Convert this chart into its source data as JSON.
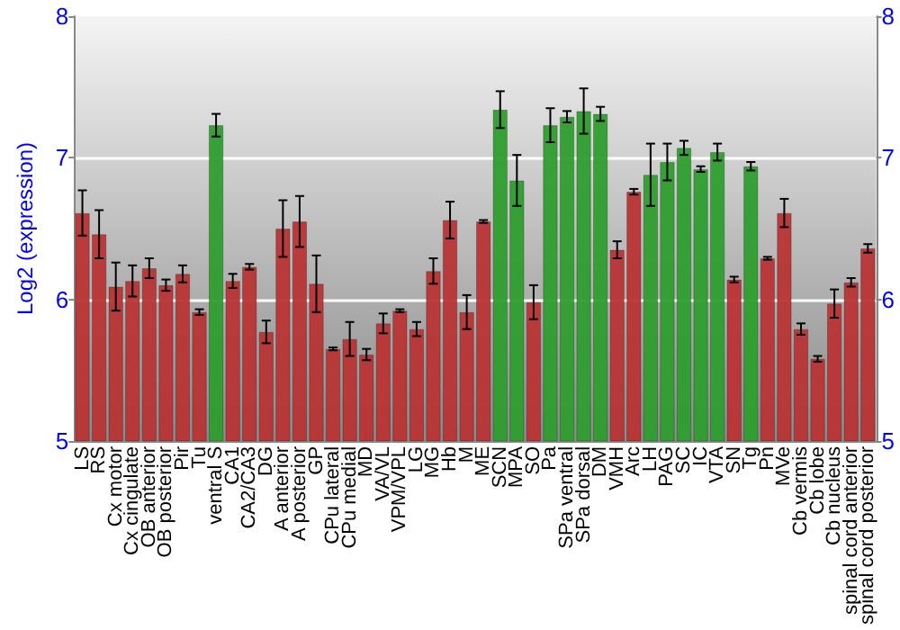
{
  "chart_data": {
    "type": "bar",
    "ylabel": "Log2 (expression)",
    "categories": [
      "LS",
      "RS",
      "Cx motor",
      "Cx cingulate",
      "OB anterior",
      "OB posterior",
      "Pir",
      "Tu",
      "ventral S",
      "CA1",
      "CA2/CA3",
      "DG",
      "A anterior",
      "A posterior",
      "GP",
      "CPu lateral",
      "CPu medial",
      "MD",
      "VA/VL",
      "VPM/VPL",
      "LG",
      "MG",
      "Hb",
      "M",
      "ME",
      "SCN",
      "MPA",
      "SO",
      "Pa",
      "SPa ventral",
      "SPa dorsal",
      "DM",
      "VMH",
      "Arc",
      "LH",
      "PAG",
      "SC",
      "IC",
      "VTA",
      "SN",
      "Tg",
      "Pn",
      "MVe",
      "Cb vermis",
      "Cb lobe",
      "Cb nucleus",
      "spinal cord anterior",
      "spinal cord posterior"
    ],
    "values": [
      6.61,
      6.46,
      6.09,
      6.13,
      6.22,
      6.1,
      6.18,
      5.91,
      7.23,
      6.13,
      6.23,
      5.77,
      6.5,
      6.55,
      6.11,
      5.65,
      5.72,
      5.61,
      5.83,
      5.92,
      5.79,
      6.2,
      6.56,
      5.91,
      6.55,
      7.34,
      6.84,
      5.98,
      7.23,
      7.29,
      7.33,
      7.31,
      6.35,
      6.76,
      6.88,
      6.97,
      7.07,
      6.92,
      7.04,
      6.14,
      6.94,
      6.29,
      6.61,
      5.79,
      5.58,
      5.97,
      6.12,
      6.36
    ],
    "errors": [
      0.16,
      0.17,
      0.17,
      0.11,
      0.07,
      0.04,
      0.06,
      0.02,
      0.08,
      0.05,
      0.02,
      0.08,
      0.2,
      0.18,
      0.2,
      0.01,
      0.12,
      0.04,
      0.07,
      0.01,
      0.05,
      0.09,
      0.13,
      0.12,
      0.01,
      0.13,
      0.18,
      0.12,
      0.12,
      0.04,
      0.16,
      0.05,
      0.06,
      0.02,
      0.22,
      0.13,
      0.05,
      0.02,
      0.06,
      0.02,
      0.03,
      0.01,
      0.1,
      0.04,
      0.02,
      0.1,
      0.03,
      0.03
    ],
    "colors": [
      "#b83434",
      "#b83434",
      "#b83434",
      "#b83434",
      "#b83434",
      "#b83434",
      "#b83434",
      "#b83434",
      "#2e9e2e",
      "#b83434",
      "#b83434",
      "#b83434",
      "#b83434",
      "#b83434",
      "#b83434",
      "#b83434",
      "#b83434",
      "#b83434",
      "#b83434",
      "#b83434",
      "#b83434",
      "#b83434",
      "#b83434",
      "#b83434",
      "#b83434",
      "#2e9e2e",
      "#2e9e2e",
      "#b83434",
      "#2e9e2e",
      "#2e9e2e",
      "#2e9e2e",
      "#2e9e2e",
      "#b83434",
      "#b83434",
      "#2e9e2e",
      "#2e9e2e",
      "#2e9e2e",
      "#2e9e2e",
      "#2e9e2e",
      "#b83434",
      "#2e9e2e",
      "#b83434",
      "#b83434",
      "#b83434",
      "#b83434",
      "#b83434",
      "#b83434",
      "#b83434"
    ],
    "ylim": [
      5,
      8
    ],
    "yticks": [
      5,
      6,
      7,
      8
    ],
    "y2lim": [
      5,
      8
    ],
    "y2ticks": [
      5,
      6,
      7,
      8
    ],
    "grid": "y"
  }
}
